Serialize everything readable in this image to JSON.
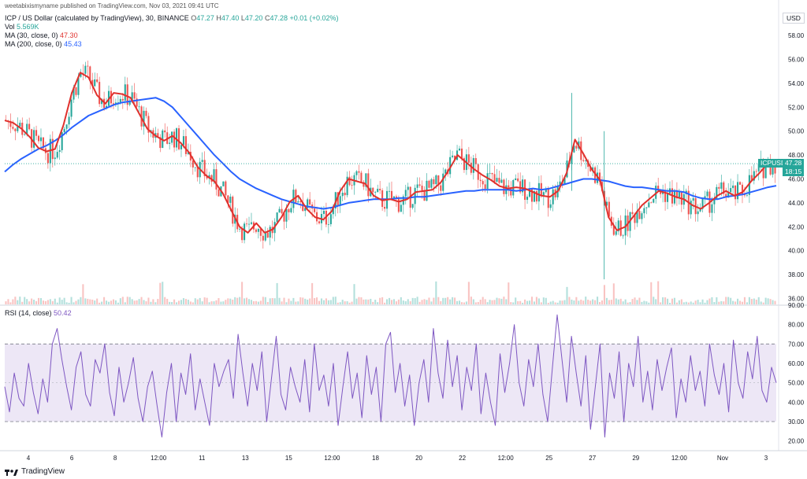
{
  "header": {
    "user_line": "weetabixismyname published on TradingView.com, Nov 03, 2021 09:41 UTC",
    "symbol_title": "ICP / US Dollar (calculated by TradingView), 30, BINANCE",
    "ohlc": {
      "o_label": "O",
      "o": "47.27",
      "h_label": "H",
      "h": "47.40",
      "l_label": "L",
      "l": "47.20",
      "c_label": "C",
      "c": "47.28",
      "change": "+0.01 (+0.02%)"
    },
    "vol_label": "Vol",
    "vol_value": "5.569K",
    "ma30_label": "MA (30, close, 0)",
    "ma30_value": "47.30",
    "ma200_label": "MA (200, close, 0)",
    "ma200_value": "45.43",
    "rsi_label": "RSI (14, close)",
    "rsi_value": "50.42",
    "currency": "USD"
  },
  "price_tag": {
    "symbol": "ICPUSD",
    "price": "47.28",
    "countdown": "18:15"
  },
  "footer": {
    "brand": "TradingView"
  },
  "colors": {
    "up": "#26a69a",
    "down": "#ef5350",
    "ma30": "#e0312d",
    "ma200": "#2962ff",
    "rsi": "#7e57c2",
    "rsi_band": "#ede7f6"
  },
  "chart_data": [
    {
      "type": "candlestick",
      "title": "ICP / US Dollar (calculated by TradingView), 30, BINANCE",
      "y_ticks": [
        "58.00",
        "56.00",
        "54.00",
        "52.00",
        "50.00",
        "48.00",
        "46.00",
        "44.00",
        "42.00",
        "40.00",
        "38.00",
        "36.00"
      ],
      "ylim": [
        35.5,
        59.0
      ],
      "x_ticks": [
        "4",
        "6",
        "8",
        "12:00",
        "11",
        "13",
        "15",
        "12:00",
        "18",
        "20",
        "22",
        "12:00",
        "25",
        "27",
        "29",
        "12:00",
        "Nov",
        "3"
      ],
      "series": [
        {
          "name": "MA (30, close, 0)",
          "values": [
            50.9,
            50.7,
            50.2,
            49.5,
            48.6,
            48.3,
            48.5,
            50.5,
            53.2,
            54.9,
            54.5,
            53.0,
            52.3,
            53.2,
            53.1,
            52.8,
            51.5,
            50.2,
            49.6,
            49.2,
            49.6,
            49.0,
            48.2,
            47.0,
            46.3,
            45.8,
            44.8,
            43.4,
            42.0,
            41.5,
            42.3,
            41.5,
            41.8,
            42.8,
            44.1,
            44.6,
            43.5,
            42.8,
            42.6,
            43.3,
            45.0,
            46.0,
            45.8,
            45.6,
            44.6,
            44.2,
            44.3,
            44.1,
            44.3,
            44.9,
            45.0,
            45.1,
            45.7,
            46.8,
            48.0,
            47.4,
            46.8,
            46.3,
            45.9,
            45.4,
            45.2,
            45.3,
            45.2,
            44.9,
            44.6,
            44.5,
            45.0,
            46.5,
            49.3,
            48.1,
            46.8,
            45.9,
            42.8,
            41.7,
            42.0,
            42.9,
            43.8,
            44.4,
            45.0,
            44.8,
            44.5,
            44.3,
            43.8,
            43.5,
            44.0,
            44.6,
            45.0,
            44.6,
            44.9,
            45.8,
            46.5,
            47.3,
            47.3
          ]
        },
        {
          "name": "MA (200, close, 0)",
          "values": [
            46.6,
            47.2,
            47.7,
            48.1,
            48.5,
            48.8,
            49.2,
            49.7,
            50.3,
            50.8,
            51.3,
            51.6,
            51.9,
            52.2,
            52.4,
            52.5,
            52.6,
            52.7,
            52.8,
            52.5,
            52.0,
            51.2,
            50.4,
            49.6,
            48.8,
            48.0,
            47.3,
            46.6,
            46.0,
            45.6,
            45.2,
            44.9,
            44.6,
            44.3,
            44.1,
            43.9,
            43.7,
            43.6,
            43.5,
            43.6,
            43.8,
            44.0,
            44.1,
            44.2,
            44.3,
            44.3,
            44.3,
            44.4,
            44.4,
            44.5,
            44.5,
            44.6,
            44.7,
            44.8,
            44.9,
            45.0,
            45.0,
            45.1,
            45.1,
            45.1,
            45.1,
            45.0,
            45.1,
            45.2,
            45.1,
            45.2,
            45.4,
            45.6,
            45.8,
            46.0,
            46.0,
            45.9,
            45.8,
            45.6,
            45.4,
            45.3,
            45.3,
            45.2,
            45.1,
            45.0,
            45.0,
            44.9,
            44.6,
            44.4,
            44.3,
            44.3,
            44.5,
            44.6,
            44.7,
            44.9,
            45.1,
            45.3,
            45.43
          ]
        }
      ]
    },
    {
      "type": "line",
      "title": "RSI (14, close)",
      "y_ticks": [
        "90.00",
        "80.00",
        "70.00",
        "60.00",
        "50.00",
        "40.00",
        "30.00",
        "20.00"
      ],
      "ylim": [
        15,
        90
      ],
      "bands": [
        70,
        30
      ],
      "midline": 50,
      "series": [
        {
          "name": "RSI (14, close)",
          "values": [
            48,
            35,
            55,
            42,
            38,
            60,
            45,
            34,
            52,
            40,
            70,
            78,
            62,
            48,
            36,
            58,
            66,
            44,
            38,
            62,
            55,
            70,
            45,
            33,
            58,
            40,
            50,
            63,
            42,
            30,
            48,
            56,
            38,
            22,
            45,
            60,
            30,
            55,
            44,
            65,
            36,
            52,
            40,
            28,
            60,
            48,
            56,
            62,
            42,
            75,
            55,
            38,
            60,
            46,
            66,
            30,
            52,
            74,
            44,
            36,
            58,
            48,
            40,
            62,
            35,
            70,
            46,
            54,
            38,
            60,
            28,
            48,
            66,
            42,
            55,
            32,
            64,
            44,
            58,
            30,
            70,
            76,
            45,
            60,
            38,
            54,
            28,
            50,
            62,
            40,
            78,
            55,
            42,
            72,
            48,
            64,
            36,
            58,
            46,
            70,
            34,
            55,
            40,
            28,
            65,
            45,
            60,
            80,
            50,
            38,
            62,
            48,
            70,
            44,
            30,
            58,
            85,
            62,
            40,
            74,
            55,
            38,
            64,
            26,
            48,
            70,
            22,
            55,
            42,
            66,
            30,
            60,
            48,
            74,
            40,
            56,
            36,
            62,
            46,
            58,
            68,
            32,
            52,
            40,
            64,
            46,
            56,
            38,
            70,
            54,
            44,
            60,
            35,
            72,
            50,
            42,
            66,
            52,
            74,
            46,
            40,
            58,
            50
          ]
        }
      ]
    }
  ]
}
